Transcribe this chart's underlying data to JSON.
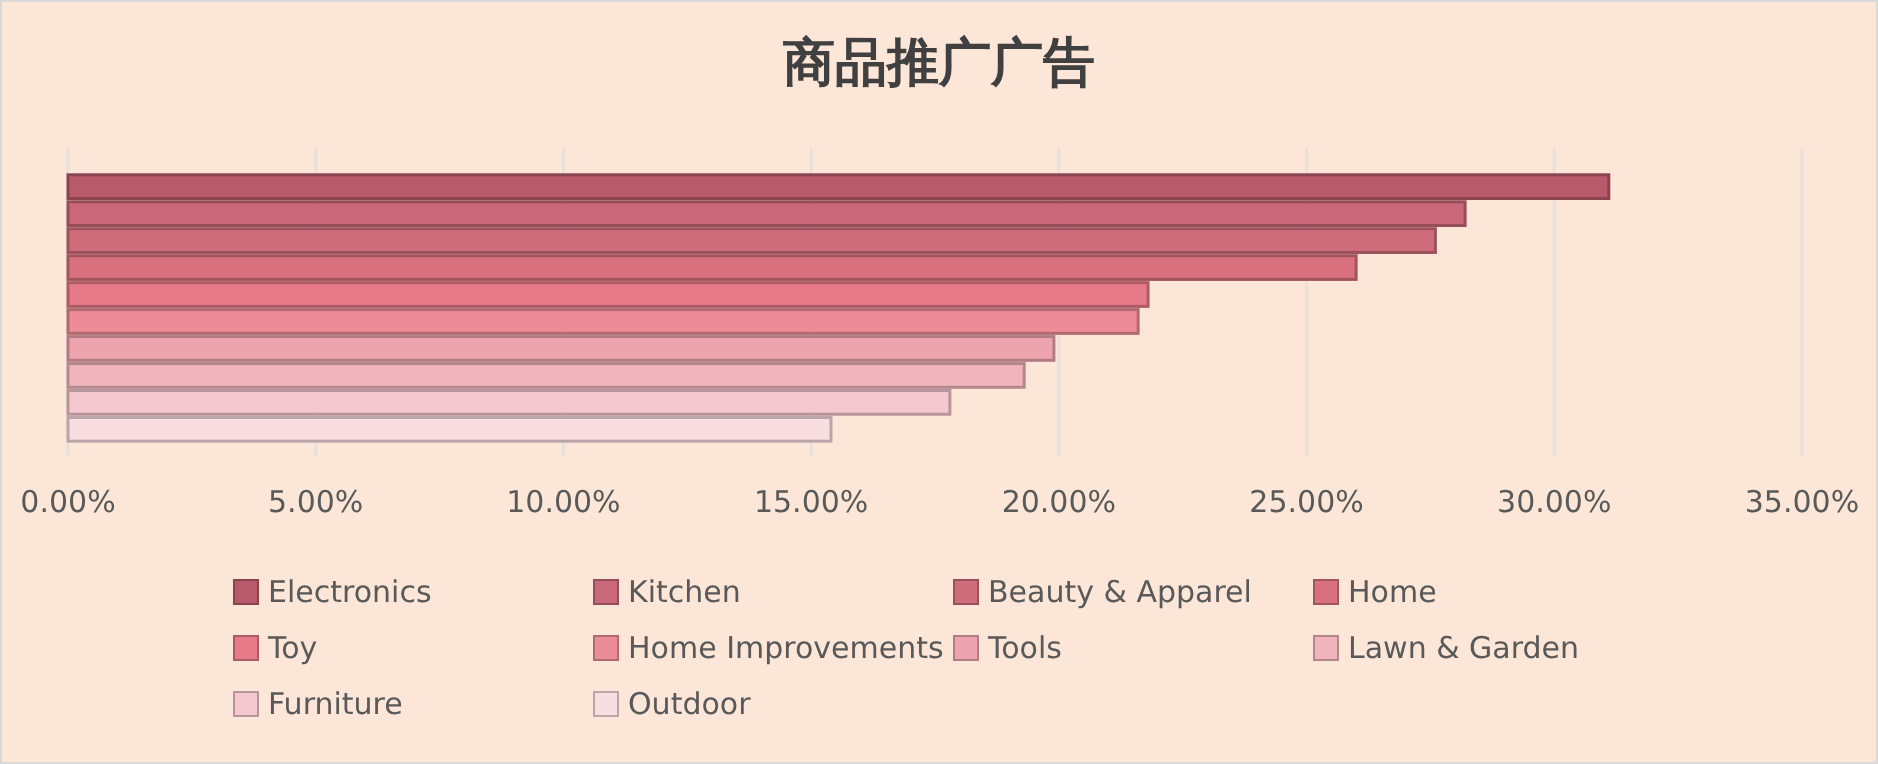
{
  "chart_data": {
    "type": "bar",
    "orientation": "horizontal",
    "title": "商品推广广告",
    "categories": [
      null
    ],
    "xlim": [
      0,
      35
    ],
    "xticks": [
      {
        "value": 0,
        "label": "0.00%"
      },
      {
        "value": 5,
        "label": "5.00%"
      },
      {
        "value": 10,
        "label": "10.00%"
      },
      {
        "value": 15,
        "label": "15.00%"
      },
      {
        "value": 20,
        "label": "20.00%"
      },
      {
        "value": 25,
        "label": "25.00%"
      },
      {
        "value": 30,
        "label": "30.00%"
      },
      {
        "value": 35,
        "label": "35.00%"
      }
    ],
    "grid": "x",
    "legend": "bottom",
    "series": [
      {
        "name": "Electronics",
        "color": "#b85a6a",
        "values": [
          31.1
        ]
      },
      {
        "name": "Kitchen",
        "color": "#c86878",
        "values": [
          28.2
        ]
      },
      {
        "name": "Beauty & Apparel",
        "color": "#cf6c7c",
        "values": [
          27.6
        ]
      },
      {
        "name": "Home",
        "color": "#d8707e",
        "values": [
          26.0
        ]
      },
      {
        "name": "Toy",
        "color": "#e67a88",
        "values": [
          21.8
        ]
      },
      {
        "name": "Home Improvements",
        "color": "#ec8c98",
        "values": [
          21.6
        ]
      },
      {
        "name": "Tools",
        "color": "#eea4ae",
        "values": [
          19.9
        ]
      },
      {
        "name": "Lawn & Garden",
        "color": "#f0b4bc",
        "values": [
          19.3
        ]
      },
      {
        "name": "Furniture",
        "color": "#f4c8ce",
        "values": [
          17.8
        ]
      },
      {
        "name": "Outdoor",
        "color": "#f8dde1",
        "values": [
          15.4
        ]
      }
    ]
  }
}
